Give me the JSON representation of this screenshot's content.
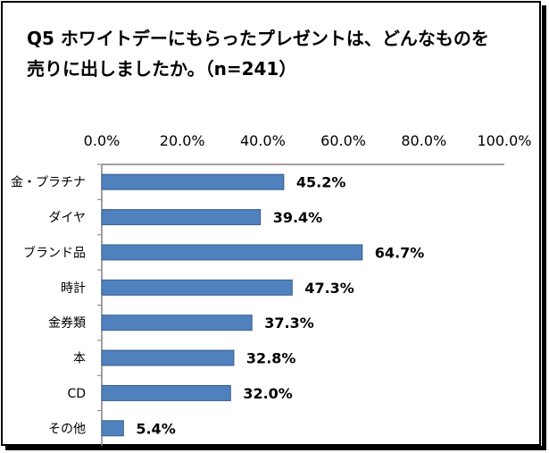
{
  "chart_data": {
    "type": "bar",
    "orientation": "horizontal",
    "title": "Q5 ホワイトデーにもらったプレゼントは、どんなものを",
    "subtitle": "売りに出しましたか。（n=241）",
    "categories": [
      "金・プラチナ",
      "ダイヤ",
      "ブランド品",
      "時計",
      "金券類",
      "本",
      "CD",
      "その他"
    ],
    "values": [
      45.2,
      39.4,
      64.7,
      47.3,
      37.3,
      32.8,
      32.0,
      5.4
    ],
    "data_labels": [
      "45.2%",
      "39.4%",
      "64.7%",
      "47.3%",
      "37.3%",
      "32.8%",
      "32.0%",
      "5.4%"
    ],
    "xlim": [
      0,
      100
    ],
    "xticks": [
      0,
      20,
      40,
      60,
      80,
      100
    ],
    "xtick_labels": [
      "0.0%",
      "20.0%",
      "40.0%",
      "60.0%",
      "80.0%",
      "100.0%"
    ],
    "x_axis_position": "top",
    "grid": false,
    "legend": "none",
    "bar_color": "#4F81BD",
    "bar_border_color": "#3A5F8F"
  }
}
